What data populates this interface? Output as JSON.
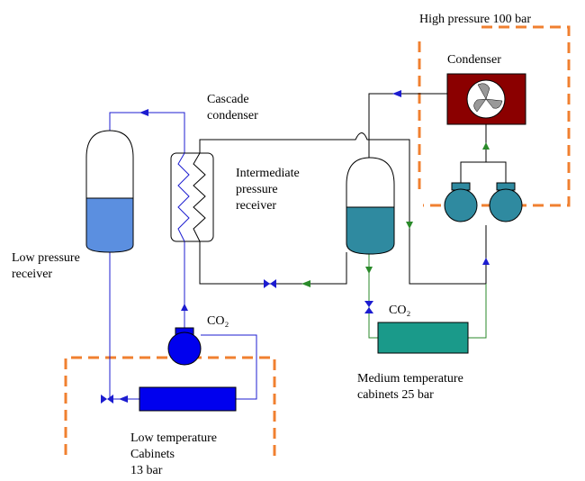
{
  "high_pressure": {
    "label": "High pressure  100 bar"
  },
  "condenser": {
    "label": "Condenser"
  },
  "cascade_condenser": {
    "lines": [
      "Cascade",
      "condenser"
    ]
  },
  "intermediate_receiver": {
    "lines": [
      "Intermediate",
      "pressure",
      "receiver"
    ]
  },
  "low_pressure_receiver": {
    "lines": [
      "Low pressure",
      "receiver"
    ]
  },
  "low_co2": {
    "label": "CO₂"
  },
  "medium_co2": {
    "label": "CO₂"
  },
  "medium_cabinets": {
    "lines": [
      "Medium temperature",
      "cabinets 25 bar"
    ]
  },
  "low_cabinets": {
    "lines": [
      "Low temperature",
      "Cabinets",
      "13 bar"
    ]
  }
}
